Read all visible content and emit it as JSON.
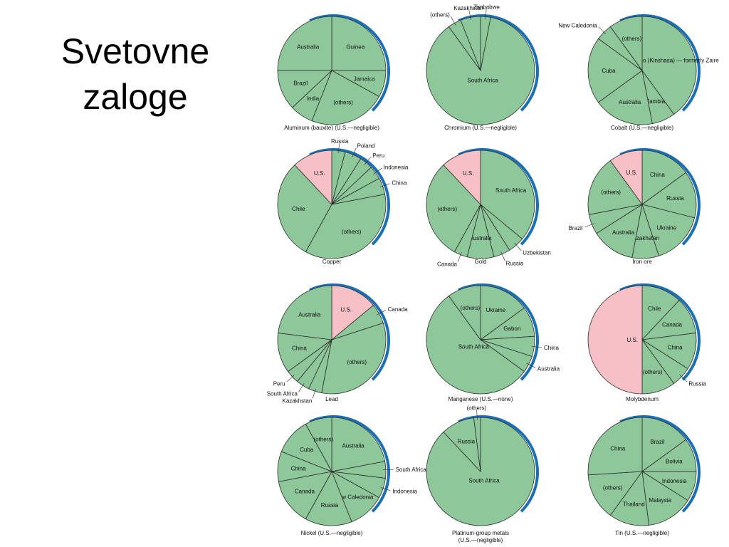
{
  "slide": {
    "title_line1": "Svetovne",
    "title_line2": "zaloge"
  },
  "colors": {
    "slice": "#8ec79a",
    "us_slice": "#f6c0c6",
    "edge": "#1a6fb5",
    "outline": "#2c2c2c"
  },
  "chart_data": [
    {
      "type": "pie",
      "title": "Aluminum (bauxite) (U.S.—negligible)",
      "slices": [
        {
          "label": "Guinea",
          "value": 25
        },
        {
          "label": "Jamaica",
          "value": 8
        },
        {
          "label": "(others)",
          "value": 23
        },
        {
          "label": "India",
          "value": 7
        },
        {
          "label": "Brazil",
          "value": 12
        },
        {
          "label": "Australia",
          "value": 25
        }
      ]
    },
    {
      "type": "pie",
      "title": "Chromium (U.S.—negligible)",
      "slices": [
        {
          "label": "Zimbabwe",
          "value": 3
        },
        {
          "label": "South Africa",
          "value": 87
        },
        {
          "label": "(others)",
          "value": 4
        },
        {
          "label": "Kazakhstan",
          "value": 6
        }
      ]
    },
    {
      "type": "pie",
      "title": "Cobalt (U.S.—negligible)",
      "slices": [
        {
          "label": "Congo (Kinshasa) — formerly Zaire",
          "value": 40
        },
        {
          "label": "Zambia",
          "value": 7
        },
        {
          "label": "Australia",
          "value": 18
        },
        {
          "label": "Cuba",
          "value": 20
        },
        {
          "label": "New Caledonia",
          "value": 5
        },
        {
          "label": "(others)",
          "value": 10
        }
      ]
    },
    {
      "type": "pie",
      "title": "Copper",
      "slices": [
        {
          "label": "Russia",
          "value": 4
        },
        {
          "label": "Poland",
          "value": 5
        },
        {
          "label": "Peru",
          "value": 4
        },
        {
          "label": "Indonesia",
          "value": 4
        },
        {
          "label": "China",
          "value": 5
        },
        {
          "label": "(others)",
          "value": 36
        },
        {
          "label": "Chile",
          "value": 30
        },
        {
          "label": "U.S.",
          "value": 12
        }
      ]
    },
    {
      "type": "pie",
      "title": "Gold",
      "slices": [
        {
          "label": "South Africa",
          "value": 36
        },
        {
          "label": "Uzbekistan",
          "value": 5
        },
        {
          "label": "Russia",
          "value": 5
        },
        {
          "label": "Australia",
          "value": 8
        },
        {
          "label": "Canada",
          "value": 4
        },
        {
          "label": "(others)",
          "value": 30
        },
        {
          "label": "U.S.",
          "value": 12
        }
      ]
    },
    {
      "type": "pie",
      "title": "Iron ore",
      "slices": [
        {
          "label": "China",
          "value": 15
        },
        {
          "label": "Russia",
          "value": 14
        },
        {
          "label": "Ukraine",
          "value": 16
        },
        {
          "label": "Kazakhstan",
          "value": 8
        },
        {
          "label": "Australia",
          "value": 13
        },
        {
          "label": "Brazil",
          "value": 6
        },
        {
          "label": "(others)",
          "value": 18
        },
        {
          "label": "U.S.",
          "value": 10
        }
      ]
    },
    {
      "type": "pie",
      "title": "Lead",
      "slices": [
        {
          "label": "U.S.",
          "value": 14
        },
        {
          "label": "Canada",
          "value": 6
        },
        {
          "label": "(others)",
          "value": 33
        },
        {
          "label": "Kazakhstan",
          "value": 4
        },
        {
          "label": "South Africa",
          "value": 4
        },
        {
          "label": "Peru",
          "value": 4
        },
        {
          "label": "China",
          "value": 12
        },
        {
          "label": "Australia",
          "value": 23
        }
      ]
    },
    {
      "type": "pie",
      "title": "Manganese (U.S.—none)",
      "slices": [
        {
          "label": "Ukraine",
          "value": 15
        },
        {
          "label": "Gabon",
          "value": 9
        },
        {
          "label": "China",
          "value": 6
        },
        {
          "label": "Australia",
          "value": 5
        },
        {
          "label": "South Africa",
          "value": 55
        },
        {
          "label": "(others)",
          "value": 10
        }
      ]
    },
    {
      "type": "pie",
      "title": "Molybdenum",
      "slices": [
        {
          "label": "Chile",
          "value": 12
        },
        {
          "label": "Canada",
          "value": 11
        },
        {
          "label": "China",
          "value": 11
        },
        {
          "label": "Russia",
          "value": 6
        },
        {
          "label": "(others)",
          "value": 10
        },
        {
          "label": "U.S.",
          "value": 50
        }
      ]
    },
    {
      "type": "pie",
      "title": "Nickel (U.S.—negligible)",
      "slices": [
        {
          "label": "Australia",
          "value": 22
        },
        {
          "label": "South Africa",
          "value": 5
        },
        {
          "label": "Indonesia",
          "value": 6
        },
        {
          "label": "New Caledonia",
          "value": 11
        },
        {
          "label": "Russia",
          "value": 14
        },
        {
          "label": "Canada",
          "value": 14
        },
        {
          "label": "China",
          "value": 9
        },
        {
          "label": "Cuba",
          "value": 11
        },
        {
          "label": "(others)",
          "value": 8
        }
      ]
    },
    {
      "type": "pie",
      "title": "Platinum-group metals",
      "subtitle": "(U.S.—negligible)",
      "slices": [
        {
          "label": "South Africa",
          "value": 88
        },
        {
          "label": "Russia",
          "value": 10
        },
        {
          "label": "(others)",
          "value": 2
        }
      ]
    },
    {
      "type": "pie",
      "title": "Tin (U.S.—negligible)",
      "slices": [
        {
          "label": "Brazil",
          "value": 15
        },
        {
          "label": "Bolivia",
          "value": 10
        },
        {
          "label": "Indonesia",
          "value": 9
        },
        {
          "label": "Malaysia",
          "value": 14
        },
        {
          "label": "Thailand",
          "value": 12
        },
        {
          "label": "(others)",
          "value": 14
        },
        {
          "label": "China",
          "value": 26
        }
      ]
    }
  ]
}
